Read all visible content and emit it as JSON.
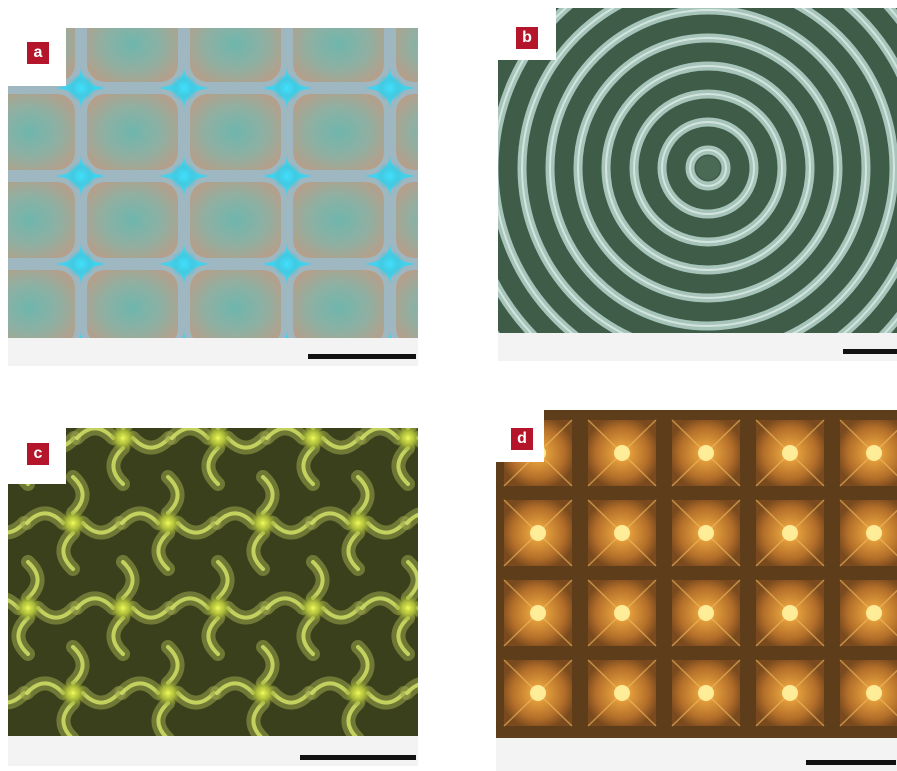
{
  "panels": [
    {
      "letter": "a",
      "description_color": "#7fa6a0"
    },
    {
      "letter": "b",
      "description_color": "#4d6b5a"
    },
    {
      "letter": "c",
      "description_color": "#4f5a24"
    },
    {
      "letter": "d",
      "description_color": "#6e4a1f"
    }
  ],
  "colors": {
    "label_bg": "#b5152b",
    "label_text": "#ffffff",
    "scalebar": "#111111"
  }
}
